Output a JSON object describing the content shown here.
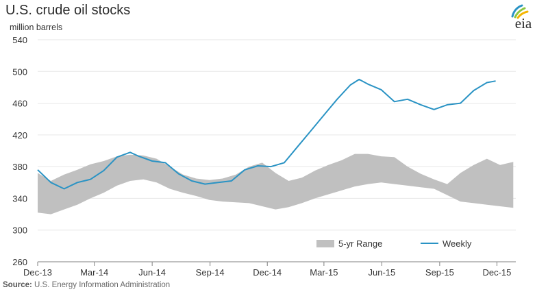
{
  "header": {
    "title": "U.S. crude oil stocks",
    "unit": "million barrels",
    "logo_text": "eia"
  },
  "source": {
    "label": "Source:",
    "text": "U.S. Energy Information Administration"
  },
  "colors": {
    "range_fill": "#c0c0c0",
    "weekly_line": "#2a93c4",
    "axis": "#808080",
    "grid": "#e6e6e6",
    "logo_rays": [
      "#2a93c4",
      "#8cc63f",
      "#f4b400"
    ]
  },
  "chart_data": {
    "type": "area",
    "title": "U.S. crude oil stocks",
    "ylabel": "million barrels",
    "ylim": [
      260,
      540
    ],
    "yticks": [
      260,
      300,
      340,
      380,
      420,
      460,
      500,
      540
    ],
    "xlim": [
      "2013-12-01",
      "2015-12-31"
    ],
    "xticks": [
      {
        "date": "2013-12-01",
        "label": "Dec-13"
      },
      {
        "date": "2014-03-01",
        "label": "Mar-14"
      },
      {
        "date": "2014-06-01",
        "label": "Jun-14"
      },
      {
        "date": "2014-09-01",
        "label": "Sep-14"
      },
      {
        "date": "2014-12-01",
        "label": "Dec-14"
      },
      {
        "date": "2015-03-01",
        "label": "Mar-15"
      },
      {
        "date": "2015-06-01",
        "label": "Jun-15"
      },
      {
        "date": "2015-09-01",
        "label": "Sep-15"
      },
      {
        "date": "2015-12-01",
        "label": "Dec-15"
      }
    ],
    "legend": {
      "placement": "bottom",
      "range_label": "5-yr Range",
      "weekly_label": "Weekly"
    },
    "range": {
      "name": "5-yr Range",
      "x": [
        "2013-12-01",
        "2013-12-22",
        "2014-01-12",
        "2014-02-02",
        "2014-02-23",
        "2014-03-16",
        "2014-04-06",
        "2014-04-27",
        "2014-05-18",
        "2014-06-08",
        "2014-06-29",
        "2014-07-20",
        "2014-08-10",
        "2014-08-31",
        "2014-09-21",
        "2014-10-12",
        "2014-11-02",
        "2014-11-23",
        "2014-12-14",
        "2015-01-04",
        "2015-01-25",
        "2015-02-15",
        "2015-03-08",
        "2015-03-29",
        "2015-04-19",
        "2015-05-10",
        "2015-05-31",
        "2015-06-21",
        "2015-07-12",
        "2015-08-02",
        "2015-08-23",
        "2015-09-13",
        "2015-10-04",
        "2015-10-25",
        "2015-11-15",
        "2015-12-06",
        "2015-12-27"
      ],
      "low": [
        322,
        320,
        326,
        332,
        340,
        347,
        356,
        362,
        364,
        360,
        352,
        347,
        343,
        338,
        336,
        335,
        334,
        330,
        326,
        329,
        334,
        340,
        345,
        350,
        355,
        358,
        360,
        358,
        356,
        354,
        352,
        344,
        336,
        334,
        332,
        330,
        328
      ],
      "high": [
        372,
        362,
        370,
        376,
        383,
        387,
        393,
        395,
        394,
        390,
        380,
        370,
        365,
        363,
        365,
        370,
        380,
        385,
        372,
        362,
        366,
        375,
        382,
        388,
        396,
        396,
        393,
        392,
        380,
        371,
        364,
        358,
        372,
        382,
        390,
        382,
        386
      ]
    },
    "series": [
      {
        "name": "Weekly",
        "x": [
          "2013-12-01",
          "2013-12-22",
          "2014-01-12",
          "2014-02-02",
          "2014-02-23",
          "2014-03-16",
          "2014-04-06",
          "2014-04-27",
          "2014-05-11",
          "2014-06-01",
          "2014-06-22",
          "2014-07-13",
          "2014-08-03",
          "2014-08-24",
          "2014-09-14",
          "2014-10-05",
          "2014-10-26",
          "2014-11-16",
          "2014-12-07",
          "2014-12-28",
          "2015-01-18",
          "2015-02-08",
          "2015-03-01",
          "2015-03-22",
          "2015-04-12",
          "2015-04-26",
          "2015-05-10",
          "2015-05-31",
          "2015-06-21",
          "2015-07-12",
          "2015-08-02",
          "2015-08-23",
          "2015-09-13",
          "2015-10-04",
          "2015-10-25",
          "2015-11-15",
          "2015-11-29"
        ],
        "values": [
          376,
          360,
          352,
          360,
          364,
          375,
          392,
          398,
          393,
          387,
          385,
          371,
          362,
          358,
          360,
          362,
          376,
          381,
          380,
          385,
          405,
          425,
          445,
          465,
          483,
          490,
          484,
          477,
          462,
          465,
          458,
          452,
          458,
          460,
          476,
          486,
          488
        ]
      }
    ]
  }
}
